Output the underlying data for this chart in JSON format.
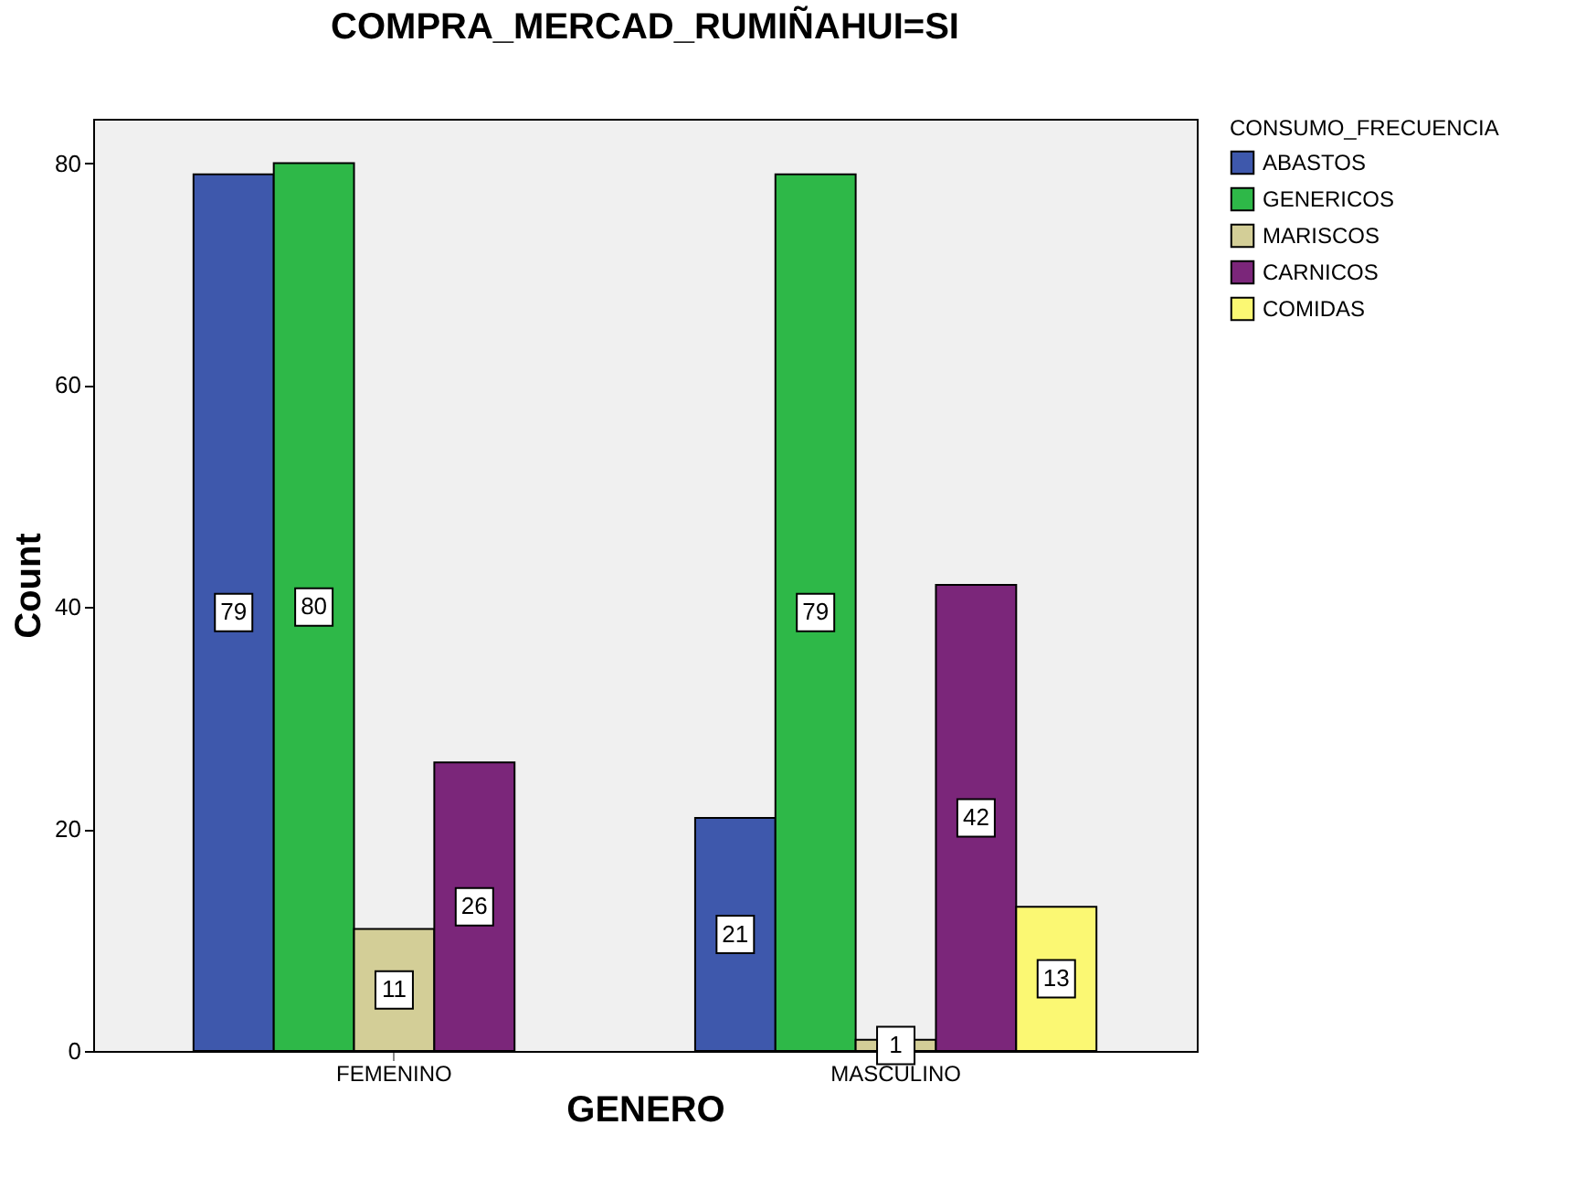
{
  "chart_data": {
    "type": "bar",
    "title": "COMPRA_MERCAD_RUMIÑAHUI=SI",
    "xlabel": "GENERO",
    "ylabel": "Count",
    "legend_title": "CONSUMO_FRECUENCIA",
    "categories": [
      "FEMENINO",
      "MASCULINO"
    ],
    "series": [
      {
        "name": "ABASTOS",
        "color": "#3e58ac",
        "values": [
          79,
          21
        ]
      },
      {
        "name": "GENERICOS",
        "color": "#2eb848",
        "values": [
          80,
          79
        ]
      },
      {
        "name": "MARISCOS",
        "color": "#d3ce97",
        "values": [
          11,
          1
        ]
      },
      {
        "name": "CARNICOS",
        "color": "#7b267a",
        "values": [
          26,
          42
        ]
      },
      {
        "name": "COMIDAS",
        "color": "#fbf873",
        "values": [
          null,
          13
        ]
      }
    ],
    "ylim": [
      0,
      84
    ],
    "yticks": [
      0,
      20,
      40,
      60,
      80
    ],
    "grid": false,
    "legend": "top right",
    "data_labels": true
  }
}
